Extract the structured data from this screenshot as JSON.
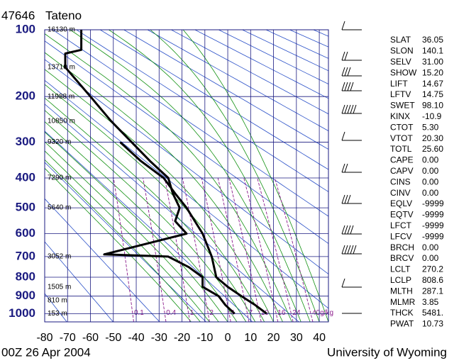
{
  "chart_data": {
    "type": "skewt",
    "station": "47646",
    "name": "Tateno",
    "footer_left": "00Z 26 Apr 2004",
    "footer_right": "University of Wyoming",
    "xlim": [
      -80,
      44
    ],
    "xticks": [
      -80,
      -70,
      -60,
      -50,
      -40,
      -30,
      -20,
      -10,
      0,
      10,
      20,
      30,
      40
    ],
    "ylim": [
      100,
      1050
    ],
    "yticks": [
      100,
      200,
      300,
      400,
      500,
      600,
      700,
      800,
      900,
      1000
    ],
    "y_scale": "power",
    "y_exponent": 0.286,
    "grid": true,
    "series": [
      {
        "color": "#000000",
        "y": [
          1000,
          950,
          900,
          850,
          800,
          750,
          700,
          690,
          600,
          550,
          500,
          450,
          400,
          350,
          300,
          250,
          200,
          150,
          130,
          125,
          100
        ],
        "x": [
          3,
          -1,
          -4,
          -11,
          -11,
          -17,
          -26,
          -54,
          -18,
          -23,
          -21,
          -24,
          -26,
          -34,
          -42,
          -51,
          -60,
          -71,
          -71,
          -64,
          -64
        ]
      },
      {
        "color": "#000000",
        "y": [
          1000,
          950,
          900,
          850,
          800,
          700,
          600,
          500,
          450,
          400,
          350,
          300
        ],
        "x": [
          17,
          12,
          6,
          0,
          -5,
          -7,
          -11,
          -18,
          -23,
          -28,
          -38,
          -47
        ]
      }
    ],
    "heights": [
      {
        "p": 100,
        "label": "16130 m"
      },
      {
        "p": 150,
        "label": "13710 m"
      },
      {
        "p": 200,
        "label": "11988 m"
      },
      {
        "p": 250,
        "label": "10850 m"
      },
      {
        "p": 300,
        "label": "9320 m"
      },
      {
        "p": 400,
        "label": "7290 m"
      },
      {
        "p": 500,
        "label": "5640 m"
      },
      {
        "p": 700,
        "label": "3052 m"
      },
      {
        "p": 850,
        "label": "1505 m"
      },
      {
        "p": 925,
        "label": "810 m"
      },
      {
        "p": 1000,
        "label": "153 m"
      }
    ],
    "mixing_ratio_labels": [
      "0.1",
      "0.4",
      "1",
      "2",
      "4",
      "7",
      "10",
      "16",
      "24",
      "40g/kg"
    ],
    "indices": [
      [
        "SLAT",
        "36.05"
      ],
      [
        "SLON",
        "140.1"
      ],
      [
        "SELV",
        "31.00"
      ],
      [
        "SHOW",
        "15.20"
      ],
      [
        "LIFT",
        "14.67"
      ],
      [
        "LFTV",
        "14.75"
      ],
      [
        "SWET",
        "98.10"
      ],
      [
        "KINX",
        "-10.9"
      ],
      [
        "CTOT",
        "5.30"
      ],
      [
        "VTOT",
        "20.30"
      ],
      [
        "TOTL",
        "25.60"
      ],
      [
        "CAPE",
        "0.00"
      ],
      [
        "CAPV",
        "0.00"
      ],
      [
        "CINS",
        "0.00"
      ],
      [
        "CINV",
        "0.00"
      ],
      [
        "EQLV",
        "-9999"
      ],
      [
        "EQTV",
        "-9999"
      ],
      [
        "LFCT",
        "-9999"
      ],
      [
        "LFCV",
        "-9999"
      ],
      [
        "BRCH",
        "0.00"
      ],
      [
        "BRCV",
        "0.00"
      ],
      [
        "LCLT",
        "270.2"
      ],
      [
        "LCLP",
        "808.6"
      ],
      [
        "MLTH",
        "287.1"
      ],
      [
        "MLMR",
        "3.85"
      ],
      [
        "THCK",
        "5481."
      ],
      [
        "PWAT",
        "10.73"
      ]
    ]
  }
}
